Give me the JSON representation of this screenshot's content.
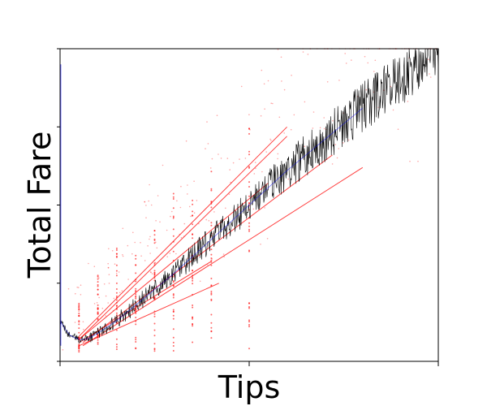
{
  "chart_data": {
    "type": "scatter",
    "title": "",
    "xlabel": "Tips",
    "ylabel": "Total Fare",
    "grid": false,
    "legend": "none",
    "x_tick_labels": [],
    "y_tick_labels": [],
    "x_domain": [
      0,
      1
    ],
    "y_domain": [
      0,
      1
    ],
    "colors": {
      "trend_line": "#000000",
      "scatter_points": "#ff0000",
      "trend_highlight": "#0000ff",
      "axis": "#000000"
    },
    "series": [
      {
        "type": "line",
        "color": "#000000",
        "points": [
          [
            0.0,
            0.13
          ],
          [
            0.01,
            0.11
          ],
          [
            0.02,
            0.09
          ],
          [
            0.03,
            0.08
          ],
          [
            0.05,
            0.07
          ],
          [
            0.07,
            0.07
          ],
          [
            0.1,
            0.09
          ],
          [
            0.15,
            0.13
          ],
          [
            0.2,
            0.18
          ],
          [
            0.3,
            0.28
          ],
          [
            0.4,
            0.39
          ],
          [
            0.5,
            0.5
          ],
          [
            0.6,
            0.61
          ],
          [
            0.7,
            0.71
          ],
          [
            0.8,
            0.81
          ],
          [
            0.9,
            0.9
          ],
          [
            0.95,
            0.96
          ],
          [
            1.0,
            1.0
          ]
        ]
      }
    ],
    "fan_lines": [
      {
        "x": [
          0.05,
          0.6
        ],
        "y": [
          0.08,
          0.75
        ]
      },
      {
        "x": [
          0.05,
          0.6
        ],
        "y": [
          0.07,
          0.72
        ]
      },
      {
        "x": [
          0.05,
          0.55
        ],
        "y": [
          0.07,
          0.57
        ]
      },
      {
        "x": [
          0.06,
          0.72
        ],
        "y": [
          0.06,
          0.66
        ]
      },
      {
        "x": [
          0.06,
          0.8
        ],
        "y": [
          0.05,
          0.62
        ]
      },
      {
        "x": [
          0.05,
          0.4
        ],
        "y": [
          0.06,
          0.32
        ]
      },
      {
        "x": [
          0.05,
          0.42
        ],
        "y": [
          0.05,
          0.25
        ]
      }
    ],
    "point_columns": [
      0.05,
      0.1,
      0.15,
      0.2,
      0.25,
      0.3,
      0.35,
      0.4,
      0.5
    ]
  }
}
